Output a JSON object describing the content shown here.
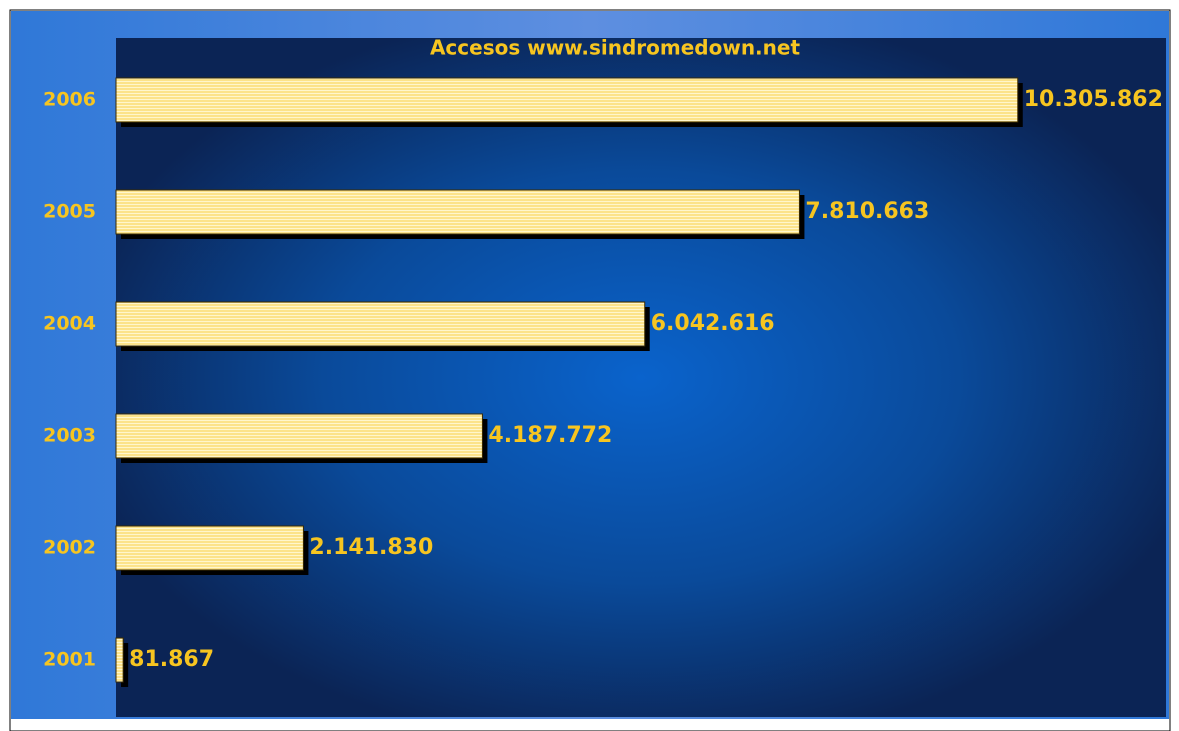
{
  "chart_data": {
    "type": "bar",
    "orientation": "horizontal",
    "title": "Accesos www.sindromedown.net",
    "categories": [
      "2006",
      "2005",
      "2004",
      "2003",
      "2002",
      "2001"
    ],
    "values": [
      10305862,
      7810663,
      6042616,
      4187772,
      2141830,
      81867
    ],
    "value_labels": [
      "10.305.862",
      "7.810.663",
      "6.042.616",
      "4.187.772",
      "2.141.830",
      "81.867"
    ],
    "color": "#fce38a",
    "xlim": [
      0,
      12000000
    ]
  }
}
